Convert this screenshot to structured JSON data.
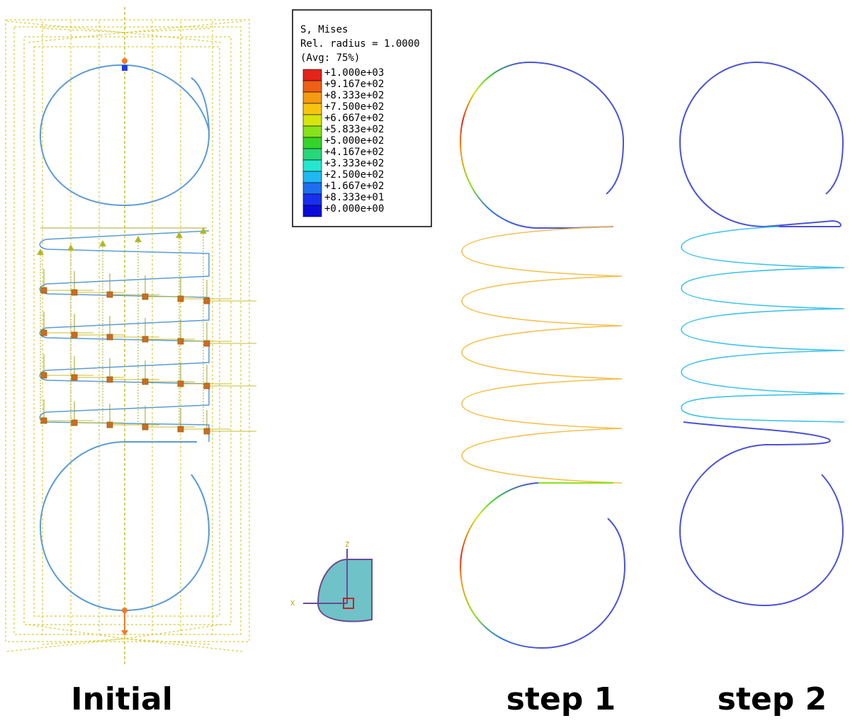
{
  "legend": {
    "title_lines": [
      "S, Mises",
      "Rel. radius = 1.0000",
      "(Avg: 75%)"
    ],
    "entries": [
      {
        "label": "+1.000e+03",
        "color": "#e4231b"
      },
      {
        "label": "+9.167e+02",
        "color": "#f05f16"
      },
      {
        "label": "+8.333e+02",
        "color": "#f69a12"
      },
      {
        "label": "+7.500e+02",
        "color": "#f7c50f"
      },
      {
        "label": "+6.667e+02",
        "color": "#d6e60c"
      },
      {
        "label": "+5.833e+02",
        "color": "#88e21a"
      },
      {
        "label": "+5.000e+02",
        "color": "#35d42a"
      },
      {
        "label": "+4.167e+02",
        "color": "#27d77c"
      },
      {
        "label": "+3.333e+02",
        "color": "#25e6cf"
      },
      {
        "label": "+2.500e+02",
        "color": "#1fb8f2"
      },
      {
        "label": "+1.667e+02",
        "color": "#1e6ff0"
      },
      {
        "label": "+8.333e+01",
        "color": "#1a2ef0"
      },
      {
        "label": "+0.000e+00",
        "color": "#0b0bd9"
      }
    ]
  },
  "captions": {
    "initial": "Initial",
    "step1": "step 1",
    "step2": "step 2"
  },
  "triad": {
    "z_label": "Z",
    "x_label": "X"
  },
  "colors": {
    "initial_spring": "#5b9bd5",
    "constraint_lines": "#d9cc3a",
    "step1_coil": "#f5c04a",
    "step2_coil": "#3fc3ea",
    "step2_hooks": "#4a52d6",
    "node_marker": "#d2691e",
    "triad_fill": "#6fc2c7"
  }
}
